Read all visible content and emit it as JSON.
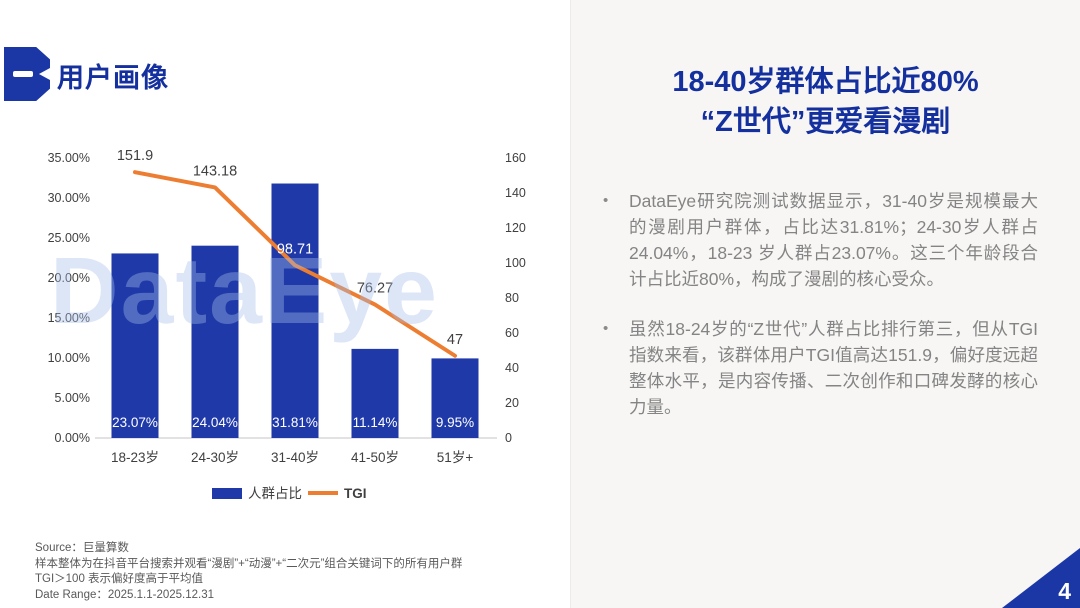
{
  "slide": {
    "badge_label": "一",
    "title": "用户画像",
    "page_number": "4",
    "accent_blue": "#1b37a6",
    "heading_blue": "#142f9e",
    "orange": "#ed7d31"
  },
  "watermark": "DataEye",
  "chart_data": {
    "type": "bar",
    "subtype": "bar+line combo",
    "categories": [
      "18-23岁",
      "24-30岁",
      "31-40岁",
      "41-50岁",
      "51岁+"
    ],
    "series": [
      {
        "name": "人群占比",
        "type": "bar",
        "axis": "left",
        "color": "#1f3aa8",
        "values": [
          23.07,
          24.04,
          31.81,
          11.14,
          9.95
        ],
        "labels": [
          "23.07%",
          "24.04%",
          "31.81%",
          "11.14%",
          "9.95%"
        ]
      },
      {
        "name": "TGI",
        "type": "line",
        "axis": "right",
        "color": "#ed7d31",
        "values": [
          151.9,
          143.18,
          98.71,
          76.27,
          47
        ],
        "labels": [
          "151.9",
          "143.18",
          "98.71",
          "76.27",
          "47"
        ]
      }
    ],
    "left_axis": {
      "min": 0,
      "max": 35,
      "ticks": [
        "0.00%",
        "5.00%",
        "10.00%",
        "15.00%",
        "20.00%",
        "25.00%",
        "30.00%",
        "35.00%"
      ]
    },
    "right_axis": {
      "min": 0,
      "max": 160,
      "ticks": [
        "0",
        "20",
        "40",
        "60",
        "80",
        "100",
        "120",
        "140",
        "160"
      ]
    },
    "grid": false,
    "legend_position": "bottom",
    "title": "",
    "xlabel": "",
    "ylabel": ""
  },
  "right_panel": {
    "heading_line1": "18-40岁群体占比近80%",
    "heading_line2": "“Z世代”更爱看漫剧",
    "bullet_marker": "•",
    "bullets": [
      "DataEye研究院测试数据显示，31-40岁是规模最大的漫剧用户群体，占比达31.81%；24-30岁人群占24.04%，18-23 岁人群占23.07%。这三个年龄段合计占比近80%，构成了漫剧的核心受众。",
      "虽然18-24岁的“Z世代”人群占比排行第三，但从TGI指数来看，该群体用户TGI值高达151.9，偏好度远超整体水平，是内容传播、二次创作和口碑发酵的核心力量。"
    ]
  },
  "footer": {
    "lines": [
      "Source：巨量算数",
      "样本整体为在抖音平台搜索并观看“漫剧”+“动漫”+“二次元”组合关键词下的所有用户群",
      "TGI＞100 表示偏好度高于平均值",
      "Date Range：2025.1.1-2025.12.31"
    ]
  }
}
